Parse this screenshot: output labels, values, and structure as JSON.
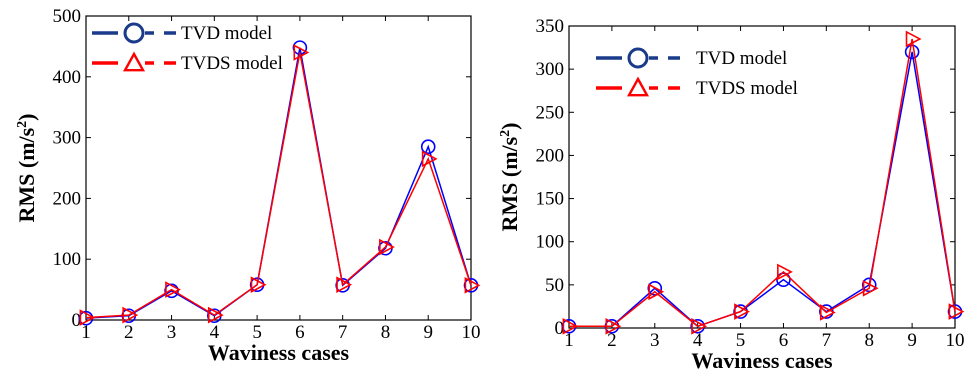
{
  "chart_data": [
    {
      "type": "line",
      "title": "",
      "xlabel": "Waviness cases",
      "ylabel_main": "RMS (m/s",
      "ylabel_sup": "2",
      "ylabel_tail": ")",
      "ylim": [
        0,
        500
      ],
      "xlim": [
        1,
        10
      ],
      "grid": false,
      "legend_position": "top-left",
      "x": [
        1,
        2,
        3,
        4,
        5,
        6,
        7,
        8,
        9,
        10
      ],
      "xticks": [
        "1",
        "2",
        "3",
        "4",
        "5",
        "6",
        "7",
        "8",
        "9",
        "10"
      ],
      "yticks": [
        "0",
        "100",
        "200",
        "300",
        "400",
        "500"
      ],
      "series": [
        {
          "name": "TVD model",
          "color": "#0000ff",
          "marker": "circle",
          "values": [
            3,
            7,
            48,
            7,
            58,
            448,
            57,
            118,
            285,
            57
          ]
        },
        {
          "name": "TVDS model",
          "color": "#ff0000",
          "marker": "triangle-right",
          "values": [
            4,
            8,
            50,
            8,
            58,
            440,
            58,
            120,
            265,
            57
          ]
        }
      ],
      "legend_colors": {
        "TVD model": "#1a3a8a",
        "TVDS model": "#ff0000"
      }
    },
    {
      "type": "line",
      "title": "",
      "xlabel": "Waviness cases",
      "ylabel_main": "RMS (m/s",
      "ylabel_sup": "2",
      "ylabel_tail": ")",
      "ylim": [
        0,
        350
      ],
      "xlim": [
        1,
        10
      ],
      "grid": false,
      "legend_position": "top-left",
      "x": [
        1,
        2,
        3,
        4,
        5,
        6,
        7,
        8,
        9,
        10
      ],
      "xticks": [
        "1",
        "2",
        "3",
        "4",
        "5",
        "6",
        "7",
        "8",
        "9",
        "10"
      ],
      "yticks": [
        "0",
        "50",
        "100",
        "150",
        "200",
        "250",
        "300",
        "350"
      ],
      "series": [
        {
          "name": "TVD model",
          "color": "#0000ff",
          "marker": "circle",
          "values": [
            2,
            2,
            46,
            2,
            19,
            56,
            19,
            50,
            320,
            19
          ]
        },
        {
          "name": "TVDS model",
          "color": "#ff0000",
          "marker": "triangle-right",
          "values": [
            2,
            2,
            42,
            2,
            19,
            65,
            18,
            46,
            335,
            19
          ]
        }
      ],
      "legend_colors": {
        "TVD model": "#1a3a8a",
        "TVDS model": "#ff0000"
      }
    }
  ]
}
